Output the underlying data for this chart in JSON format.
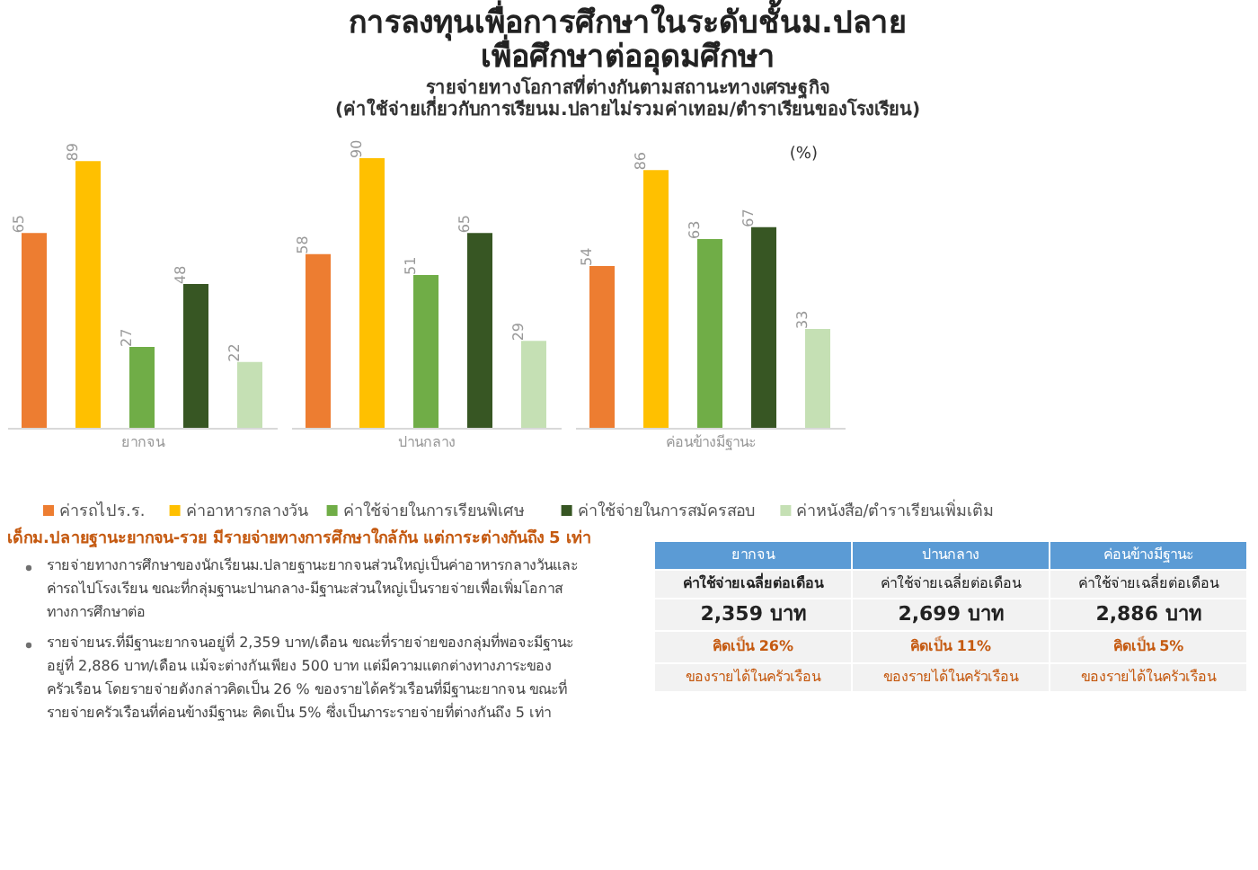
{
  "chart_data": {
    "type": "bar",
    "title": "การลงทุนเพื่อการศึกษาในระดับชั้นม.ปลาย\nเพื่อศึกษาต่ออุดมศึกษา",
    "subtitle": "รายจ่ายทางโอกาสที่ต่างกันตามสถานะทางเศรษฐกิจ\n(ค่าใช้จ่ายเกี่ยวกับการเรียนม.ปลายไม่รวมค่าเทอม/ตำราเรียนของโรงเรียน)",
    "categories": [
      "ยากจน",
      "ปานกลาง",
      "ค่อนข้างมีฐานะ"
    ],
    "series": [
      {
        "name": "ค่ารถไปร.ร.",
        "color": "#ed7d31",
        "values": [
          65,
          58,
          54
        ]
      },
      {
        "name": "ค่าอาหารกลางวัน",
        "color": "#ffc000",
        "values": [
          89,
          90,
          86
        ]
      },
      {
        "name": "ค่าใช้จ่ายในการเรียนพิเศษ",
        "color": "#70ad47",
        "values": [
          27,
          51,
          63
        ]
      },
      {
        "name": "ค่าใช้จ่ายในการสมัครสอบ",
        "color": "#375623",
        "values": [
          48,
          65,
          67
        ]
      },
      {
        "name": "ค่าหนังสือ/ตำราเรียนเพิ่มเติม",
        "color": "#c5e0b4",
        "values": [
          22,
          29,
          33
        ]
      }
    ],
    "data_labels": true,
    "legend": "bottom",
    "grid": false,
    "annotations": [
      "(%)",
      "เด็กม.ปลายฐานะยากจน-รวย มีรายจ่ายทางการศึกษาใกล้กัน แต่การะต่างกันถึง 5 เท่า",
      "รายจ่ายทางการศึกษาของนักเรียนม.ปลายฐานะยากจนส่วนใหญ่เป็นค่าอาหารกลางวันและ\nค่ารถไปโรงเรียน ขณะที่กลุ่มฐานะปานกลาง-มีฐานะส่วนใหญ่เป็นรายจ่ายเพื่อเพิ่มโอกาส\nทางการศึกษาต่อ",
      "รายจ่ายนร.ที่มีฐานะยากจนอยู่ที่ 2,359 บาท/เดือน ขณะที่รายจ่ายของกลุ่มที่พอจะมีฐานะ\nอยู่ที่ 2,886 บาท/เดือน แม้จะต่างกันเพียง 500 บาท แต่มีความแตกต่างทางภาระของ\nครัวเรือน โดยรายจ่ายดังกล่าวคิดเป็น 26 % ของรายได้ครัวเรือนที่มีฐานะยากจน ขณะที่\nรายจ่ายครัวเรือนที่ค่อนข้างมีฐานะ คิดเป็น 5% ซึ่งเป็นภาระรายจ่ายที่ต่างกันถึง 5 เท่า",
      "ยากจน",
      "ปานกลาง",
      "ค่อนข้างมีฐานะ",
      "ค่าใช้จ่ายเฉลี่ยต่อเดือน",
      "ค่าใช้จ่ายเฉลี่ยต่อเดือน",
      "ค่าใช้จ่ายเฉลี่ยต่อเดือน",
      "2,359 บาท",
      "2,699 บาท",
      "2,886 บาท",
      "คิดเป็น 26%",
      "คิดเป็น 11%",
      "คิดเป็น 5%",
      "ของรายได้ในครัวเรือน",
      "ของรายได้ในครัวเรือน",
      "ของรายได้ในครัวเรือน"
    ]
  }
}
